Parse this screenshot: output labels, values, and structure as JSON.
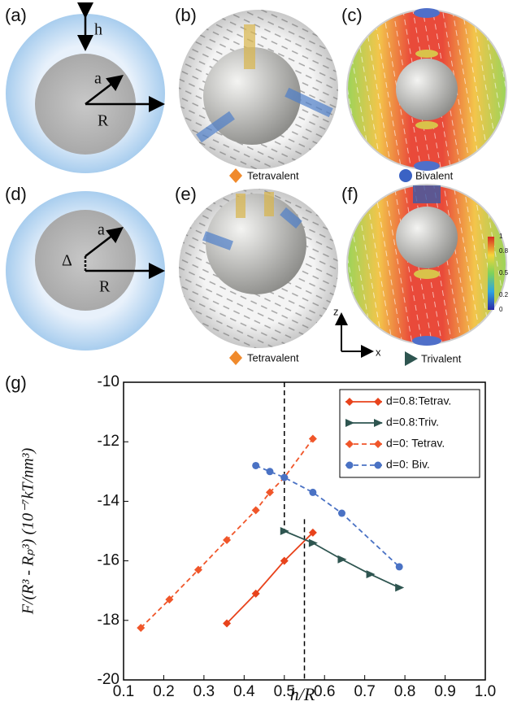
{
  "panels": {
    "a": {
      "label": "(a)",
      "h": "h",
      "a": "a",
      "R": "R"
    },
    "b": {
      "label": "(b)",
      "caption": "Tetravalent"
    },
    "c": {
      "label": "(c)",
      "caption": "Bivalent"
    },
    "d": {
      "label": "(d)",
      "a": "a",
      "delta": "Δ",
      "R": "R"
    },
    "e": {
      "label": "(e)",
      "caption": "Tetravalent"
    },
    "f": {
      "label": "(f)",
      "caption": "Trivalent",
      "colorbar_ticks": [
        1,
        0.8,
        0.5,
        0.2,
        0
      ],
      "axis_z": "z",
      "axis_x": "x"
    }
  },
  "chart_data": {
    "type": "line",
    "panel_label": "(g)",
    "x_label": "h/R",
    "y_label": "F/(R³ - Rₚ³) (10⁻⁷kT/nm³)",
    "xlim": [
      0.1,
      1.0
    ],
    "xticks": [
      0.1,
      0.2,
      0.3,
      0.4,
      0.5,
      0.6,
      0.7,
      0.8,
      0.9,
      {
        "value": 1.0,
        "label": "1.0"
      }
    ],
    "ylim": [
      -20,
      -10
    ],
    "yticks": [
      -20,
      -18,
      -16,
      -14,
      -12,
      -10
    ],
    "vlines": [
      {
        "x": 0.5,
        "y": [
          -10,
          -15
        ]
      },
      {
        "x": 0.55,
        "y": [
          -14.6,
          -20
        ]
      }
    ],
    "series": [
      {
        "name": "d=0.8:Tetrav.",
        "color": "#e8431c",
        "dash": false,
        "marker": "diamond",
        "x": [
          0.357,
          0.429,
          0.5,
          0.571
        ],
        "values": [
          -18.1,
          -17.1,
          -16.0,
          -15.05
        ]
      },
      {
        "name": "d=0.8:Triv.",
        "color": "#2e5550",
        "dash": false,
        "marker": "triangle",
        "x": [
          0.5,
          0.571,
          0.643,
          0.714,
          0.786
        ],
        "values": [
          -15.0,
          -15.4,
          -15.95,
          -16.45,
          -16.9
        ]
      },
      {
        "name": "d=0: Tetrav.",
        "color": "#f0562a",
        "dash": true,
        "marker": "diamond",
        "x": [
          0.143,
          0.214,
          0.286,
          0.357,
          0.429,
          0.464,
          0.5,
          0.571
        ],
        "values": [
          -18.25,
          -17.3,
          -16.3,
          -15.3,
          -14.3,
          -13.7,
          -13.2,
          -11.9
        ]
      },
      {
        "name": "d=0: Biv.",
        "color": "#4a72c4",
        "dash": true,
        "marker": "circle",
        "x": [
          0.429,
          0.464,
          0.5,
          0.571,
          0.643,
          0.786
        ],
        "values": [
          -12.8,
          -13.0,
          -13.2,
          -13.7,
          -14.4,
          -16.2
        ]
      }
    ]
  }
}
